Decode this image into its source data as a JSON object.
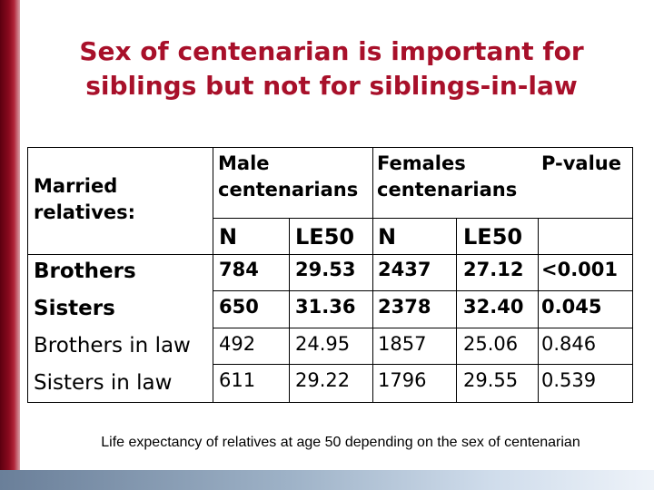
{
  "title": {
    "line1": "Sex of centenarian is important for",
    "line2": "siblings but not for siblings-in-law"
  },
  "table": {
    "row_header_label_line1": "Married",
    "row_header_label_line2": "relatives:",
    "group_male_line1": "Male",
    "group_male_line2": "centenarians",
    "group_female_line1": "Females",
    "group_female_line2": "centenarians",
    "pvalue_header": "P-value",
    "sub_headers": [
      "N",
      "LE50",
      "N",
      "LE50"
    ],
    "rows": [
      {
        "label": "Brothers",
        "male_n": "784",
        "male_le50": "29.53",
        "female_n": "2437",
        "female_le50": "27.12",
        "p": "<0.001"
      },
      {
        "label": "Sisters",
        "male_n": "650",
        "male_le50": "31.36",
        "female_n": "2378",
        "female_le50": "32.40",
        "p": "0.045"
      },
      {
        "label": "Brothers in law",
        "male_n": "492",
        "male_le50": "24.95",
        "female_n": "1857",
        "female_le50": "25.06",
        "p": "0.846"
      },
      {
        "label": "Sisters in law",
        "male_n": "611",
        "male_le50": "29.22",
        "female_n": "1796",
        "female_le50": "29.55",
        "p": "0.539"
      }
    ]
  },
  "caption": "Life expectancy of relatives at age 50 depending on the sex of centenarian",
  "colors": {
    "title": "#a8102a",
    "left_bar": "#8a0a1e",
    "bottom_bar": "#9fb3c8"
  }
}
